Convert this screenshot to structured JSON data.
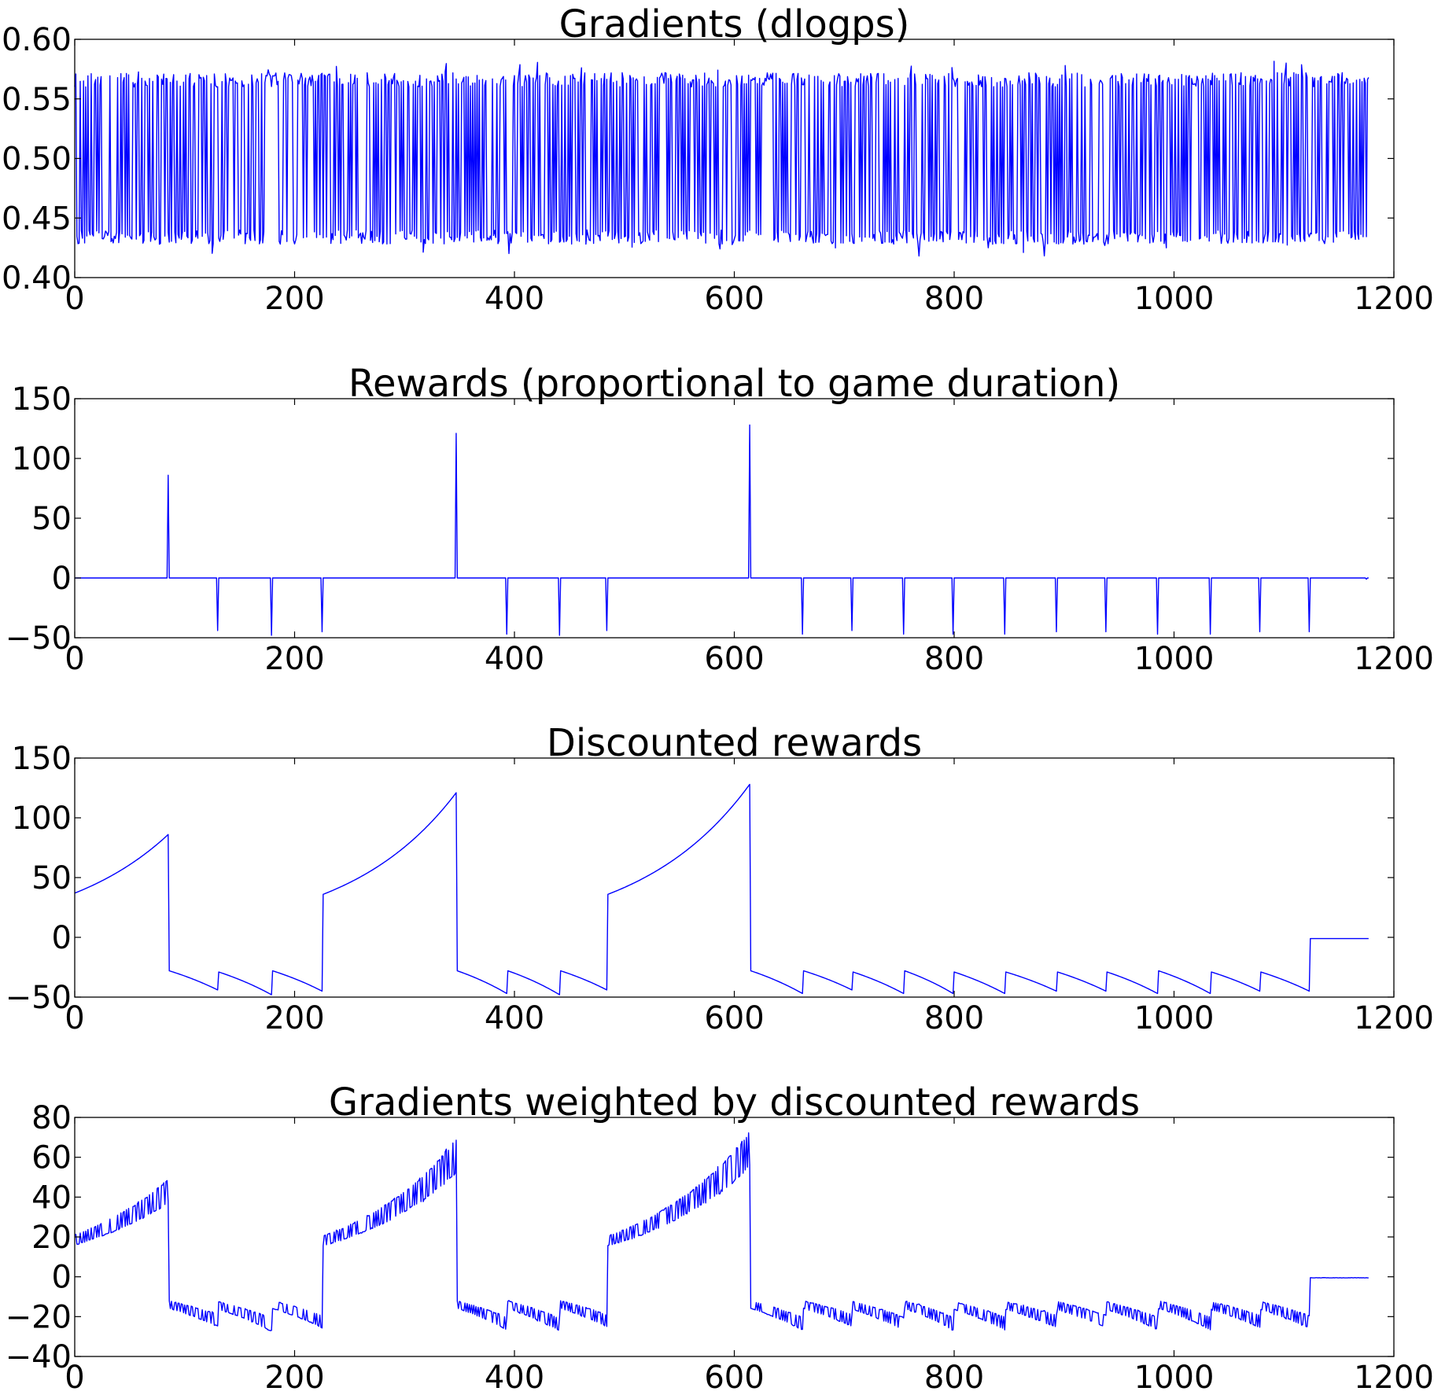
{
  "line_color": "#0000ff",
  "chart_data": [
    {
      "type": "line",
      "title": "Gradients (dlogps)",
      "xlabel": "",
      "ylabel": "",
      "xlim": [
        0,
        1200
      ],
      "ylim": [
        0.4,
        0.6
      ],
      "xticks": [
        0,
        200,
        400,
        600,
        800,
        1000,
        1200
      ],
      "xtick_labels": [
        "0",
        "200",
        "400",
        "600",
        "800",
        "1000",
        "1200"
      ],
      "yticks": [
        0.4,
        0.45,
        0.5,
        0.55,
        0.6
      ],
      "ytick_labels": [
        "0.40",
        "0.45",
        "0.50",
        "0.55",
        "0.60"
      ],
      "grid": false,
      "x_range": [
        0,
        1177
      ],
      "pattern": "oscillates between ~0.43 (low) and ~0.57 (high) at nearly every step, occasional dips to ~0.42 and peaks to ~0.58"
    },
    {
      "type": "line",
      "title": "Rewards (proportional to game duration)",
      "xlabel": "",
      "ylabel": "",
      "xlim": [
        0,
        1200
      ],
      "ylim": [
        -50,
        150
      ],
      "xticks": [
        0,
        200,
        400,
        600,
        800,
        1000,
        1200
      ],
      "xtick_labels": [
        "0",
        "200",
        "400",
        "600",
        "800",
        "1000",
        "1200"
      ],
      "yticks": [
        -50,
        0,
        50,
        100,
        150
      ],
      "ytick_labels": [
        "−50",
        "0",
        "50",
        "100",
        "150"
      ],
      "grid": false,
      "x_range": [
        0,
        1177
      ],
      "baseline": 0,
      "events": [
        {
          "x": 85,
          "value": 86
        },
        {
          "x": 130,
          "value": -44
        },
        {
          "x": 179,
          "value": -48
        },
        {
          "x": 225,
          "value": -45
        },
        {
          "x": 347,
          "value": 121
        },
        {
          "x": 393,
          "value": -47
        },
        {
          "x": 441,
          "value": -48
        },
        {
          "x": 484,
          "value": -44
        },
        {
          "x": 614,
          "value": 128
        },
        {
          "x": 662,
          "value": -47
        },
        {
          "x": 707,
          "value": -44
        },
        {
          "x": 754,
          "value": -47
        },
        {
          "x": 799,
          "value": -47
        },
        {
          "x": 846,
          "value": -47
        },
        {
          "x": 893,
          "value": -45
        },
        {
          "x": 938,
          "value": -45
        },
        {
          "x": 985,
          "value": -47
        },
        {
          "x": 1033,
          "value": -47
        },
        {
          "x": 1078,
          "value": -45
        },
        {
          "x": 1123,
          "value": -45
        },
        {
          "x": 1175,
          "value": -1
        }
      ]
    },
    {
      "type": "line",
      "title": "Discounted rewards",
      "xlabel": "",
      "ylabel": "",
      "xlim": [
        0,
        1200
      ],
      "ylim": [
        -50,
        150
      ],
      "xticks": [
        0,
        200,
        400,
        600,
        800,
        1000,
        1200
      ],
      "xtick_labels": [
        "0",
        "200",
        "400",
        "600",
        "800",
        "1000",
        "1200"
      ],
      "yticks": [
        -50,
        0,
        50,
        100,
        150
      ],
      "ytick_labels": [
        "−50",
        "0",
        "50",
        "100",
        "150"
      ],
      "grid": false,
      "x_range": [
        0,
        1177
      ],
      "segments": [
        {
          "x_start": 0,
          "x_end": 85,
          "y_start": 37,
          "y_end": 86
        },
        {
          "x_start": 86,
          "x_end": 130,
          "y_start": -28,
          "y_end": -44
        },
        {
          "x_start": 131,
          "x_end": 179,
          "y_start": -29,
          "y_end": -48
        },
        {
          "x_start": 180,
          "x_end": 225,
          "y_start": -28,
          "y_end": -45
        },
        {
          "x_start": 226,
          "x_end": 347,
          "y_start": 36,
          "y_end": 121
        },
        {
          "x_start": 348,
          "x_end": 393,
          "y_start": -28,
          "y_end": -47
        },
        {
          "x_start": 394,
          "x_end": 441,
          "y_start": -28,
          "y_end": -48
        },
        {
          "x_start": 442,
          "x_end": 484,
          "y_start": -28,
          "y_end": -44
        },
        {
          "x_start": 485,
          "x_end": 614,
          "y_start": 36,
          "y_end": 128
        },
        {
          "x_start": 615,
          "x_end": 662,
          "y_start": -28,
          "y_end": -47
        },
        {
          "x_start": 663,
          "x_end": 707,
          "y_start": -28,
          "y_end": -44
        },
        {
          "x_start": 708,
          "x_end": 754,
          "y_start": -29,
          "y_end": -47
        },
        {
          "x_start": 755,
          "x_end": 799,
          "y_start": -28,
          "y_end": -47
        },
        {
          "x_start": 800,
          "x_end": 846,
          "y_start": -29,
          "y_end": -47
        },
        {
          "x_start": 847,
          "x_end": 893,
          "y_start": -29,
          "y_end": -45
        },
        {
          "x_start": 894,
          "x_end": 938,
          "y_start": -29,
          "y_end": -45
        },
        {
          "x_start": 939,
          "x_end": 985,
          "y_start": -29,
          "y_end": -47
        },
        {
          "x_start": 986,
          "x_end": 1033,
          "y_start": -28,
          "y_end": -47
        },
        {
          "x_start": 1034,
          "x_end": 1078,
          "y_start": -29,
          "y_end": -45
        },
        {
          "x_start": 1079,
          "x_end": 1123,
          "y_start": -29,
          "y_end": -45
        },
        {
          "x_start": 1124,
          "x_end": 1177,
          "y_start": -1,
          "y_end": -1
        }
      ]
    },
    {
      "type": "line",
      "title": "Gradients weighted by discounted rewards",
      "xlabel": "",
      "ylabel": "",
      "xlim": [
        0,
        1200
      ],
      "ylim": [
        -40,
        80
      ],
      "xticks": [
        0,
        200,
        400,
        600,
        800,
        1000,
        1200
      ],
      "xtick_labels": [
        "0",
        "200",
        "400",
        "600",
        "800",
        "1000",
        "1200"
      ],
      "yticks": [
        -40,
        -20,
        0,
        20,
        40,
        60,
        80
      ],
      "ytick_labels": [
        "−40",
        "−20",
        "0",
        "20",
        "40",
        "60",
        "80"
      ],
      "grid": false,
      "x_range": [
        0,
        1177
      ],
      "derived_from": "Gradients (dlogps) multiplied by Discounted rewards"
    }
  ]
}
